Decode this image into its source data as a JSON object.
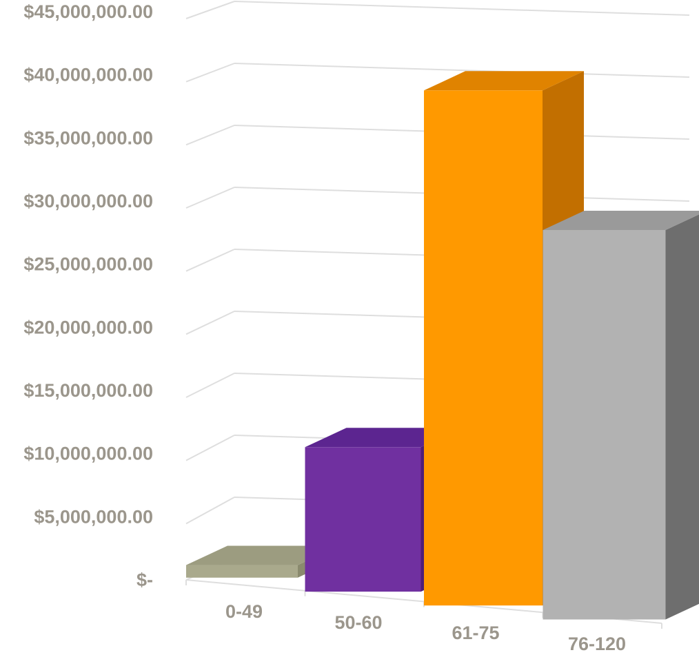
{
  "chart_data": {
    "type": "bar",
    "title": "",
    "xlabel": "",
    "ylabel": "",
    "three_d": true,
    "grid": true,
    "legend": "none",
    "categories": [
      "0-49",
      "50-60",
      "61-75",
      "76-120"
    ],
    "values": [
      1000000,
      11500000,
      41000000,
      31000000
    ],
    "ylim": [
      0,
      45000000
    ],
    "yticks": [
      0,
      5000000,
      10000000,
      15000000,
      20000000,
      25000000,
      30000000,
      35000000,
      40000000,
      45000000
    ],
    "ytick_labels": [
      "$-",
      "$5,000,000.00",
      "$10,000,000.00",
      "$15,000,000.00",
      "$20,000,000.00",
      "$25,000,000.00",
      "$30,000,000.00",
      "$35,000,000.00",
      "$40,000,000.00",
      "$45,000,000.00"
    ],
    "colors": {
      "bars": [
        "#a9a98c",
        "#7030a0",
        "#ff9900",
        "#b2b2b2"
      ],
      "bar_sides": [
        "#8a8a6e",
        "#4f1f78",
        "#c26f00",
        "#6e6e6e"
      ],
      "bar_tops": [
        "#9c9c80",
        "#5c2590",
        "#e08300",
        "#9a9a9a"
      ],
      "tick_labels": "#9b968c",
      "gridlines": "#dedede"
    }
  }
}
